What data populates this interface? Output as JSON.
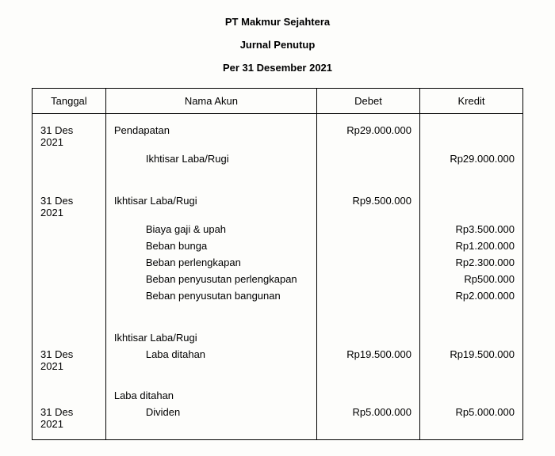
{
  "header": {
    "company": "PT Makmur Sejahtera",
    "title": "Jurnal Penutup",
    "period": "Per 31 Desember 2021"
  },
  "columns": {
    "date": "Tanggal",
    "account": "Nama Akun",
    "debit": "Debet",
    "credit": "Kredit"
  },
  "entries": {
    "e1": {
      "date": "31 Des 2021",
      "acct_main": "Pendapatan",
      "acct_sub": "Ikhtisar Laba/Rugi",
      "debit": "Rp29.000.000",
      "credit": "Rp29.000.000"
    },
    "e2": {
      "date": "31 Des 2021",
      "acct_main": "Ikhtisar Laba/Rugi",
      "debit": "Rp9.500.000",
      "sub1": {
        "acct": "Biaya gaji & upah",
        "credit": "Rp3.500.000"
      },
      "sub2": {
        "acct": "Beban bunga",
        "credit": "Rp1.200.000"
      },
      "sub3": {
        "acct": "Beban perlengkapan",
        "credit": "Rp2.300.000"
      },
      "sub4": {
        "acct": "Beban penyusutan perlengkapan",
        "credit": "Rp500.000"
      },
      "sub5": {
        "acct": "Beban penyusutan bangunan",
        "credit": "Rp2.000.000"
      }
    },
    "e3": {
      "date": "31 Des 2021",
      "acct_main": "Ikhtisar Laba/Rugi",
      "acct_sub": "Laba ditahan",
      "debit": "Rp19.500.000",
      "credit": "Rp19.500.000"
    },
    "e4": {
      "date": "31 Des 2021",
      "acct_main": "Laba ditahan",
      "acct_sub": "Dividen",
      "debit": "Rp5.000.000",
      "credit": "Rp5.000.000"
    }
  }
}
